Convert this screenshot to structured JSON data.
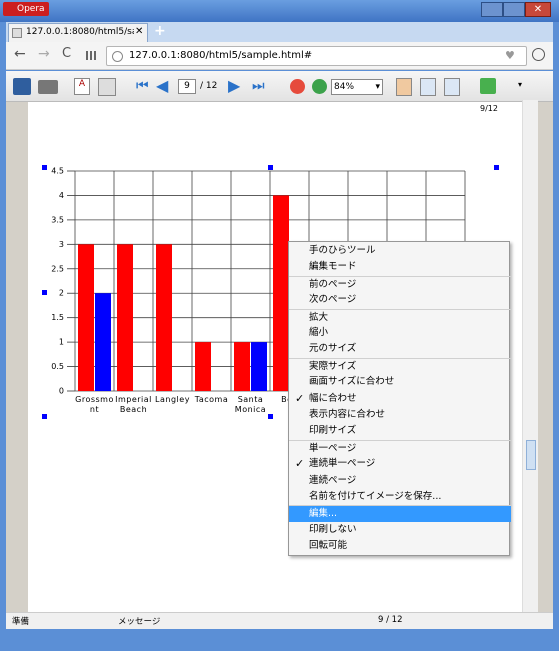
{
  "window": {
    "title": "Opera"
  },
  "tab": {
    "title": "127.0.0.1:8080/html5/sampl"
  },
  "address": "127.0.0.1:8080/html5/sample.html#",
  "viewer_toolbar": {
    "page": "9",
    "page_total": "/ 12",
    "zoom": "84%"
  },
  "page_header": "9/12",
  "chart_data": {
    "type": "bar",
    "categories": [
      "Grossmont",
      "Imperial Beach",
      "Langley",
      "Tacoma",
      "Santa Monica",
      "Bea",
      null,
      null,
      null,
      null
    ],
    "series": [
      {
        "color": "#ff0000",
        "values": [
          3,
          3,
          3,
          1,
          1,
          4,
          null,
          null,
          null,
          null
        ]
      },
      {
        "color": "#0000ff",
        "values": [
          2,
          0,
          0,
          0,
          1,
          null,
          null,
          null,
          null,
          null
        ]
      }
    ],
    "ylim": [
      0,
      4.5
    ],
    "yticks": [
      0,
      0.5,
      1,
      1.5,
      2,
      2.5,
      3,
      3.5,
      4,
      4.5
    ],
    "grid": true
  },
  "context_menu": {
    "groups": [
      {
        "items": [
          {
            "label": "手のひらツール"
          },
          {
            "label": "編集モード"
          }
        ]
      },
      {
        "items": [
          {
            "label": "前のページ"
          },
          {
            "label": "次のページ"
          }
        ]
      },
      {
        "items": [
          {
            "label": "拡大"
          },
          {
            "label": "縮小"
          },
          {
            "label": "元のサイズ"
          }
        ]
      },
      {
        "items": [
          {
            "label": "実際サイズ"
          },
          {
            "label": "画面サイズに合わせ"
          },
          {
            "label": "幅に合わせ",
            "checked": true
          },
          {
            "label": "表示内容に合わせ"
          },
          {
            "label": "印刷サイズ"
          }
        ]
      },
      {
        "items": [
          {
            "label": "単一ページ"
          },
          {
            "label": "連続単一ページ",
            "checked": true
          },
          {
            "label": "連続ページ"
          },
          {
            "label": "名前を付けてイメージを保存..."
          }
        ]
      },
      {
        "items": [
          {
            "label": "編集...",
            "highlighted": true
          },
          {
            "label": "印刷しない"
          },
          {
            "label": "回転可能"
          }
        ]
      }
    ]
  },
  "status_bar": {
    "left": "準備",
    "middle": "メッセージ",
    "right": "9 / 12"
  }
}
